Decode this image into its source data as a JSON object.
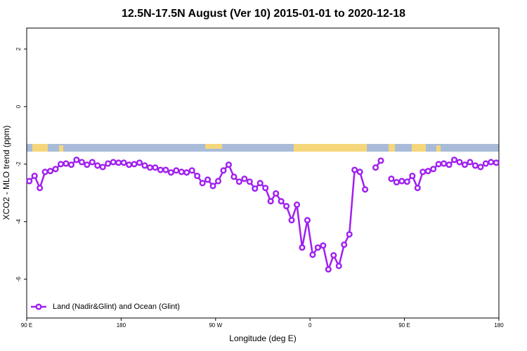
{
  "chart_data": {
    "type": "line",
    "title": "12.5N-17.5N August (Ver 10)   2015-01-01 to 2020-12-18",
    "xlabel": "Longitude (deg E)",
    "ylabel": "XCO2 - MLO trend (ppm)",
    "xlim": [
      90,
      540
    ],
    "ylim": [
      -7.35,
      2.73
    ],
    "xticks": [
      {
        "value": 90,
        "label": "90 E"
      },
      180,
      {
        "value": 270,
        "label": "90 W"
      },
      {
        "value": 360,
        "label": "0"
      },
      {
        "value": 450,
        "label": "90 E"
      },
      {
        "value": 540,
        "label": "180"
      }
    ],
    "yticks": [
      2,
      0,
      -2,
      -4,
      -6
    ],
    "legend_position": "bottomleft",
    "x": [
      92.5,
      97.5,
      102.5,
      107.5,
      112.5,
      117.5,
      122.5,
      127.5,
      132.5,
      137.5,
      142.5,
      147.5,
      152.5,
      157.5,
      162.5,
      167.5,
      172.5,
      177.5,
      182.5,
      187.5,
      192.5,
      197.5,
      202.5,
      207.5,
      212.5,
      217.5,
      222.5,
      227.5,
      232.5,
      237.5,
      242.5,
      247.5,
      252.5,
      257.5,
      262.5,
      267.5,
      272.5,
      277.5,
      282.5,
      287.5,
      292.5,
      297.5,
      302.5,
      307.5,
      312.5,
      317.5,
      322.5,
      327.5,
      332.5,
      337.5,
      342.5,
      347.5,
      352.5,
      357.5,
      362.5,
      367.5,
      372.5,
      377.5,
      382.5,
      387.5,
      392.5,
      397.5,
      402.5,
      407.5,
      412.5,
      417.5,
      422.5,
      427.5,
      432.5,
      437.5,
      442.5,
      447.5,
      452.5,
      457.5,
      462.5,
      467.5,
      472.5,
      477.5,
      482.5,
      487.5,
      492.5,
      497.5,
      502.5,
      507.5,
      512.5,
      517.5,
      522.5,
      527.5,
      532.5,
      537.5
    ],
    "series": [
      {
        "name": "Land (Nadir&Glint) and Ocean (Glint)",
        "color": "#a020f0",
        "values": [
          -2.59,
          -2.41,
          -2.83,
          -2.27,
          -2.24,
          -2.17,
          -2.0,
          -1.98,
          -2.02,
          -1.85,
          -1.93,
          -2.02,
          -1.93,
          -2.05,
          -2.1,
          -1.98,
          -1.93,
          -1.95,
          -1.95,
          -2.02,
          -2.0,
          -1.95,
          -2.05,
          -2.12,
          -2.12,
          -2.2,
          -2.2,
          -2.29,
          -2.22,
          -2.27,
          -2.29,
          -2.22,
          -2.41,
          -2.66,
          -2.54,
          -2.76,
          -2.59,
          -2.22,
          -2.02,
          -2.44,
          -2.61,
          -2.51,
          -2.61,
          -2.85,
          -2.66,
          -2.83,
          -3.29,
          -3.02,
          -3.29,
          -3.46,
          -3.95,
          -3.41,
          -4.9,
          -3.95,
          -5.15,
          -4.9,
          -4.83,
          -5.66,
          -5.17,
          -5.54,
          -4.8,
          -4.44,
          -2.2,
          -2.27,
          -2.88,
          null,
          -2.12,
          -1.88,
          null,
          -2.51,
          -2.63,
          -2.59,
          -2.61,
          -2.41,
          -2.83,
          -2.27,
          -2.24,
          -2.17,
          -2.0,
          -1.98,
          -2.02,
          -1.85,
          -1.93,
          -2.02,
          -1.93,
          -2.05,
          -2.1,
          -1.98,
          -1.93,
          -1.95
        ]
      }
    ]
  }
}
